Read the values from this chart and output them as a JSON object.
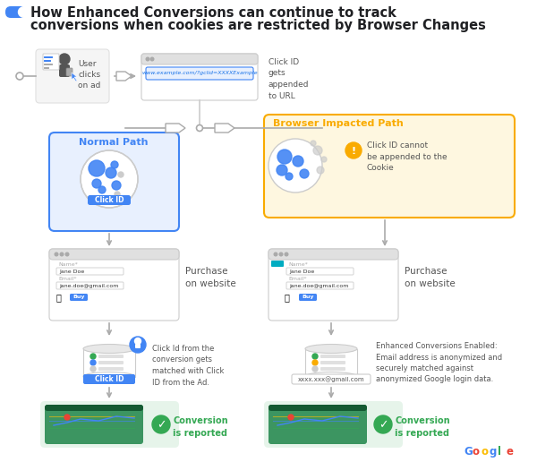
{
  "title_line1": "How Enhanced Conversions can continue to track",
  "title_line2": "conversions when cookies are restricted by Browser Changes",
  "title_color": "#202124",
  "title_fontsize": 10.5,
  "bg_color": "#ffffff",
  "toggle_color": "#4285F4",
  "normal_path_label": "Normal Path",
  "normal_path_color": "#4285F4",
  "normal_path_bg": "#E8F0FE",
  "browser_path_label": "Browser Impacted Path",
  "browser_path_color": "#F9AB00",
  "browser_path_bg": "#FEF7E0",
  "url_text": "www.example.com/?gclid=XXXXExample",
  "url_color": "#1a73e8",
  "user_label": "User\nclicks\non ad",
  "click_id_url_label": "Click ID\ngets\nappended\nto URL",
  "click_id_cannot_label": "Click ID cannot\nbe appended to the\nCookie",
  "click_id_label": "Click ID",
  "purchase_label": "Purchase\non website",
  "purchase_label2": "Purchase\non website",
  "db_label1": "Click ID",
  "db_label2_text": "xxxx.xxx@gmail.com",
  "match_text": "Click Id from the\nconversion gets\nmatched with Click\nID from the Ad.",
  "enhanced_text": "Enhanced Conversions Enabled:\nEmail address is anonymized and\nsecurely matched against\nanonymized Google login data.",
  "conversion_text": "Conversion\nis reported",
  "conversion_text2": "Conversion\nis reported",
  "conversion_bg": "#E6F4EA",
  "check_color": "#34A853",
  "arrow_color": "#AAAAAA",
  "box_border_color": "#CCCCCC",
  "light_bg": "#F5F5F5",
  "google_letters": [
    "G",
    "o",
    "o",
    "g",
    "l",
    "e"
  ],
  "google_colors": [
    "#4285F4",
    "#EA4335",
    "#FBBC05",
    "#4285F4",
    "#34A853",
    "#EA4335"
  ]
}
